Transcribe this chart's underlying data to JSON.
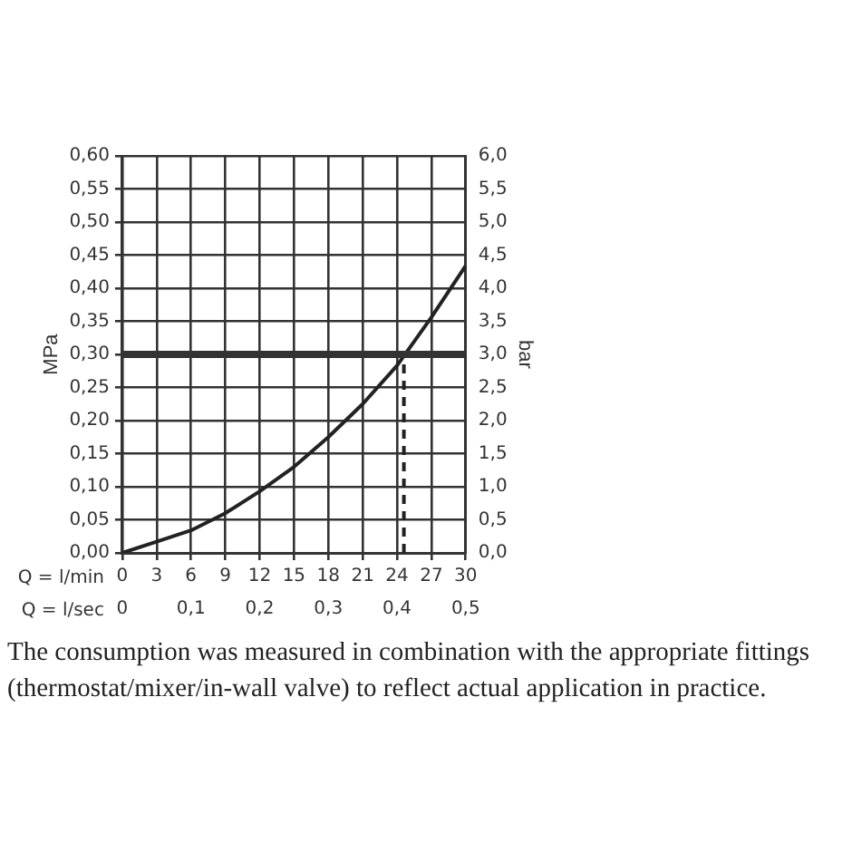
{
  "chart_data": {
    "type": "line",
    "xlabel": "Q = l/min",
    "x2label": "Q = l/sec",
    "ylabel": "MPa",
    "y2label": "bar",
    "xlim": [
      0,
      30
    ],
    "xticks": [
      0,
      3,
      6,
      9,
      12,
      15,
      18,
      21,
      24,
      27,
      30
    ],
    "x2lim": [
      0,
      0.5
    ],
    "x2ticks": [
      0,
      {
        "value": 0.1,
        "label": "0,1"
      },
      {
        "value": 0.2,
        "label": "0,2"
      },
      {
        "value": 0.3,
        "label": "0,3"
      },
      {
        "value": 0.4,
        "label": "0,4"
      },
      {
        "value": 0.5,
        "label": "0,5"
      }
    ],
    "ylim": [
      0,
      0.6
    ],
    "yticks": [
      {
        "value": 0,
        "label": "0,00"
      },
      {
        "value": 0.05,
        "label": "0,05"
      },
      {
        "value": 0.1,
        "label": "0,10"
      },
      {
        "value": 0.15,
        "label": "0,15"
      },
      {
        "value": 0.2,
        "label": "0,20"
      },
      {
        "value": 0.25,
        "label": "0,25"
      },
      {
        "value": 0.3,
        "label": "0,30"
      },
      {
        "value": 0.35,
        "label": "0,35"
      },
      {
        "value": 0.4,
        "label": "0,40"
      },
      {
        "value": 0.45,
        "label": "0,45"
      },
      {
        "value": 0.5,
        "label": "0,50"
      },
      {
        "value": 0.55,
        "label": "0,55"
      },
      {
        "value": 0.6,
        "label": "0,60"
      }
    ],
    "y2lim": [
      0,
      6
    ],
    "y2ticks": [
      {
        "value": 0,
        "label": "0,0"
      },
      {
        "value": 0.5,
        "label": "0,5"
      },
      {
        "value": 1,
        "label": "1,0"
      },
      {
        "value": 1.5,
        "label": "1,5"
      },
      {
        "value": 2,
        "label": "2,0"
      },
      {
        "value": 2.5,
        "label": "2,5"
      },
      {
        "value": 3,
        "label": "3,0"
      },
      {
        "value": 3.5,
        "label": "3,5"
      },
      {
        "value": 4,
        "label": "4,0"
      },
      {
        "value": 4.5,
        "label": "4,5"
      },
      {
        "value": 5,
        "label": "5,0"
      },
      {
        "value": 5.5,
        "label": "5,5"
      },
      {
        "value": 6,
        "label": "6,0"
      }
    ],
    "grid": true,
    "marker": "none",
    "series": [
      {
        "color": "#222222",
        "line_style": "solid",
        "x": [
          0,
          3,
          6,
          9,
          12,
          15,
          18,
          21,
          24,
          27,
          30
        ],
        "values": [
          0,
          0.017,
          0.034,
          0.06,
          0.093,
          0.13,
          0.175,
          0.225,
          0.283,
          0.356,
          0.434
        ]
      },
      {
        "color": "#222222",
        "line_style": "dashed",
        "x": [
          24.6,
          24.6
        ],
        "values": [
          0,
          0.3
        ]
      }
    ],
    "ref_lines": [
      {
        "axis": "y",
        "value": 0.3,
        "color": "#333333"
      }
    ],
    "annotations": [
      "The consumption was measured in combination with the appropriate fittings (thermostat/mixer/in-wall valve) to reflect actual application in practice."
    ]
  }
}
